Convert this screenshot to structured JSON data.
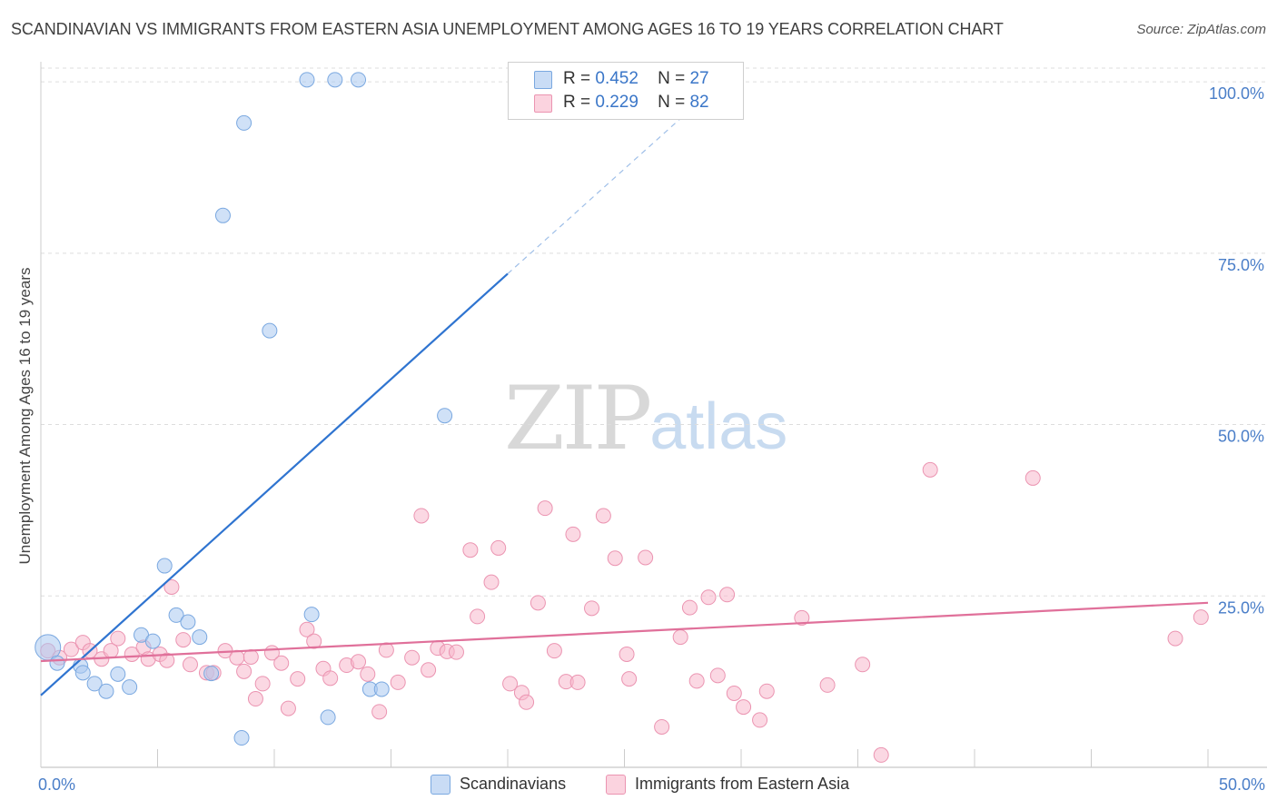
{
  "title": "SCANDINAVIAN VS IMMIGRANTS FROM EASTERN ASIA UNEMPLOYMENT AMONG AGES 16 TO 19 YEARS CORRELATION CHART",
  "source": "Source: ZipAtlas.com",
  "watermark": {
    "zip": "ZIP",
    "atlas": "atlas"
  },
  "legend_top": [
    {
      "r_label": "R =",
      "r_value": "0.452",
      "n_label": "N =",
      "n_value": "27",
      "color": "#a9c8f0"
    },
    {
      "r_label": "R =",
      "r_value": "0.229",
      "n_label": "N =",
      "n_value": "82",
      "color": "#f7b8cc"
    }
  ],
  "legend_bottom": [
    {
      "label": "Scandinavians",
      "color": "#a9c8f0"
    },
    {
      "label": "Immigrants from Eastern Asia",
      "color": "#f7b8cc"
    }
  ],
  "chart_data": {
    "type": "scatter",
    "title": "SCANDINAVIAN VS IMMIGRANTS FROM EASTERN ASIA UNEMPLOYMENT AMONG AGES 16 TO 19 YEARS CORRELATION CHART",
    "xlabel": "",
    "ylabel": "Unemployment Among Ages 16 to 19 years",
    "xlim": [
      0,
      50
    ],
    "ylim": [
      0,
      102
    ],
    "x_tick_labels": [
      "0.0%",
      "50.0%"
    ],
    "y_tick_labels": [
      "25.0%",
      "50.0%",
      "75.0%",
      "100.0%"
    ],
    "y_ticks": [
      25,
      50,
      75,
      100
    ],
    "grid": true,
    "legend_placement": "top-center",
    "series": [
      {
        "name": "Scandinavians",
        "color": "#5b93d9",
        "fill": "#a9c8f0",
        "r": 0.452,
        "n": 27,
        "trend": {
          "x": [
            0,
            20
          ],
          "y": [
            10.5,
            72
          ],
          "dashed_to": [
            28.5,
            98
          ]
        },
        "points": [
          [
            0.3,
            17.5
          ],
          [
            0.7,
            15.2
          ],
          [
            1.7,
            14.8
          ],
          [
            1.8,
            13.8
          ],
          [
            2.3,
            12.2
          ],
          [
            2.8,
            11.1
          ],
          [
            3.3,
            13.6
          ],
          [
            3.8,
            11.7
          ],
          [
            4.3,
            19.3
          ],
          [
            4.8,
            18.4
          ],
          [
            5.3,
            29.4
          ],
          [
            5.8,
            22.2
          ],
          [
            6.3,
            21.2
          ],
          [
            6.8,
            19.0
          ],
          [
            7.3,
            13.7
          ],
          [
            7.8,
            80.5
          ],
          [
            8.6,
            4.3
          ],
          [
            8.7,
            94.0
          ],
          [
            9.8,
            63.7
          ],
          [
            11.4,
            100.3
          ],
          [
            11.6,
            22.3
          ],
          [
            12.3,
            7.3
          ],
          [
            12.6,
            100.3
          ],
          [
            13.6,
            100.3
          ],
          [
            14.1,
            11.4
          ],
          [
            14.6,
            11.4
          ],
          [
            17.3,
            51.3
          ]
        ]
      },
      {
        "name": "Immigrants from Eastern Asia",
        "color": "#e0709a",
        "fill": "#f7b8cc",
        "r": 0.229,
        "n": 82,
        "trend": {
          "x": [
            0,
            50
          ],
          "y": [
            15.5,
            24
          ]
        },
        "points": [
          [
            0.3,
            17.0
          ],
          [
            0.8,
            16.0
          ],
          [
            1.3,
            17.2
          ],
          [
            1.8,
            18.2
          ],
          [
            2.1,
            17.0
          ],
          [
            2.6,
            15.8
          ],
          [
            3.0,
            17.0
          ],
          [
            3.3,
            18.8
          ],
          [
            3.9,
            16.5
          ],
          [
            4.4,
            17.5
          ],
          [
            4.6,
            15.8
          ],
          [
            5.1,
            16.5
          ],
          [
            5.4,
            15.6
          ],
          [
            5.6,
            26.3
          ],
          [
            6.1,
            18.6
          ],
          [
            6.4,
            15.0
          ],
          [
            7.1,
            13.8
          ],
          [
            7.4,
            13.8
          ],
          [
            7.9,
            17.0
          ],
          [
            8.4,
            16.0
          ],
          [
            8.7,
            14.0
          ],
          [
            9.2,
            10.0
          ],
          [
            9.5,
            12.2
          ],
          [
            9.9,
            16.7
          ],
          [
            10.3,
            15.2
          ],
          [
            10.6,
            8.6
          ],
          [
            11.0,
            12.9
          ],
          [
            11.4,
            20.1
          ],
          [
            11.7,
            18.4
          ],
          [
            12.1,
            14.4
          ],
          [
            12.4,
            13.0
          ],
          [
            13.1,
            14.9
          ],
          [
            13.6,
            15.4
          ],
          [
            14.0,
            13.6
          ],
          [
            14.5,
            8.1
          ],
          [
            14.8,
            17.1
          ],
          [
            15.3,
            12.4
          ],
          [
            15.9,
            16.0
          ],
          [
            16.3,
            36.7
          ],
          [
            16.6,
            14.2
          ],
          [
            17.0,
            17.4
          ],
          [
            17.4,
            16.9
          ],
          [
            17.8,
            16.8
          ],
          [
            18.4,
            31.7
          ],
          [
            18.7,
            22.0
          ],
          [
            19.3,
            27.0
          ],
          [
            19.6,
            32.0
          ],
          [
            20.1,
            12.2
          ],
          [
            20.6,
            10.9
          ],
          [
            20.8,
            9.5
          ],
          [
            21.3,
            24.0
          ],
          [
            21.6,
            37.8
          ],
          [
            22.0,
            17.0
          ],
          [
            22.5,
            12.5
          ],
          [
            22.8,
            34.0
          ],
          [
            23.0,
            12.4
          ],
          [
            23.6,
            23.2
          ],
          [
            24.1,
            36.7
          ],
          [
            24.6,
            30.5
          ],
          [
            25.1,
            16.5
          ],
          [
            25.2,
            12.9
          ],
          [
            25.9,
            30.6
          ],
          [
            26.6,
            5.9
          ],
          [
            27.4,
            19.0
          ],
          [
            27.8,
            23.3
          ],
          [
            28.1,
            12.6
          ],
          [
            28.6,
            24.8
          ],
          [
            29.0,
            13.4
          ],
          [
            29.4,
            25.2
          ],
          [
            29.7,
            10.8
          ],
          [
            30.1,
            8.8
          ],
          [
            30.8,
            6.9
          ],
          [
            32.6,
            21.8
          ],
          [
            33.7,
            12.0
          ],
          [
            36.0,
            1.8
          ],
          [
            38.1,
            43.4
          ],
          [
            42.5,
            42.2
          ],
          [
            48.6,
            18.8
          ],
          [
            49.7,
            21.9
          ],
          [
            31.1,
            11.1
          ],
          [
            9.0,
            16.1
          ],
          [
            35.2,
            15.0
          ]
        ]
      }
    ]
  }
}
